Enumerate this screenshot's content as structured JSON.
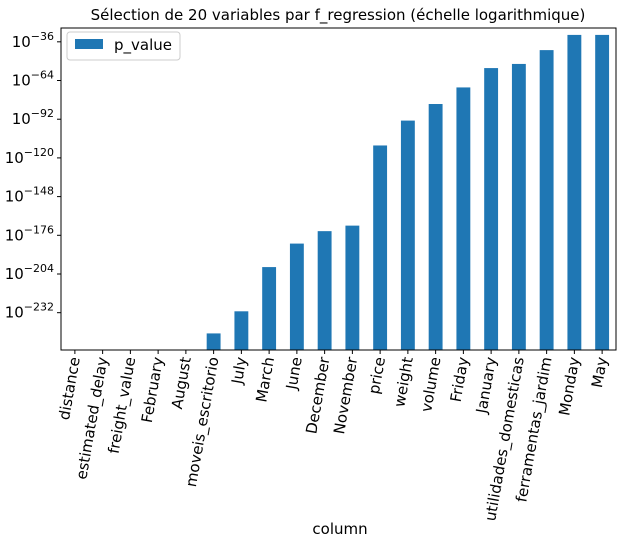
{
  "chart_data": {
    "type": "bar",
    "title": "Sélection de 20 variables par f_regression (échelle logarithmique)",
    "xlabel": "column",
    "ylabel": "",
    "log_scale": true,
    "bar_color": "#1f77b4",
    "legend": {
      "position": "top-left",
      "entries": [
        "p_value"
      ]
    },
    "yticks": [
      {
        "exp": -36,
        "label": "10",
        "sup": "−36"
      },
      {
        "exp": -64,
        "label": "10",
        "sup": "−64"
      },
      {
        "exp": -92,
        "label": "10",
        "sup": "−92"
      },
      {
        "exp": -120,
        "label": "10",
        "sup": "−120"
      },
      {
        "exp": -148,
        "label": "10",
        "sup": "−148"
      },
      {
        "exp": -176,
        "label": "10",
        "sup": "−176"
      },
      {
        "exp": -204,
        "label": "10",
        "sup": "−204"
      },
      {
        "exp": -232,
        "label": "10",
        "sup": "−232"
      }
    ],
    "ylim_exponent": [
      -259,
      -26
    ],
    "categories": [
      "distance",
      "estimated_delay",
      "freight_value",
      "February",
      "August",
      "moveis_escritorio",
      "July",
      "March",
      "June",
      "December",
      "November",
      "price",
      "weight",
      "volume",
      "Friday",
      "January",
      "utilidades_domesticas",
      "ferramentas_jardim",
      "Monday",
      "May"
    ],
    "series": [
      {
        "name": "p_value",
        "log10_values": [
          -300,
          -300,
          -300,
          -300,
          -300,
          -247,
          -231,
          -199,
          -182,
          -173,
          -169,
          -111,
          -93,
          -81,
          -69,
          -55,
          -52,
          -42,
          -31,
          -31
        ]
      }
    ]
  }
}
